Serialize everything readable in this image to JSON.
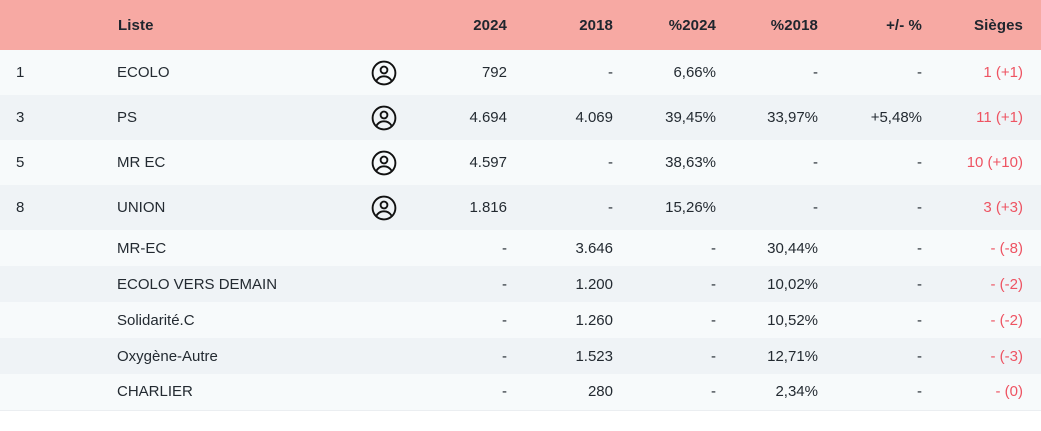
{
  "colors": {
    "header_bg": "#f7a9a3",
    "row_light": "#f7fafb",
    "row_dark": "#eff3f6",
    "text": "#232a31",
    "seats_red": "#ee5362"
  },
  "table": {
    "headers": {
      "num": "",
      "liste": "Liste",
      "icon": "",
      "y2024": "2024",
      "y2018": "2018",
      "p2024": "%2024",
      "p2018": "%2018",
      "diff": "+/- %",
      "sieges": "Sièges"
    },
    "icon_name": "candidates-user-icon",
    "rows": [
      {
        "num": "1",
        "liste": "ECOLO",
        "icon": true,
        "y2024": "792",
        "y2018": "-",
        "p2024": "6,66%",
        "p2018": "-",
        "diff": "-",
        "sieges": "1 (+1)"
      },
      {
        "num": "3",
        "liste": "PS",
        "icon": true,
        "y2024": "4.694",
        "y2018": "4.069",
        "p2024": "39,45%",
        "p2018": "33,97%",
        "diff": "+5,48%",
        "sieges": "11 (+1)"
      },
      {
        "num": "5",
        "liste": "MR EC",
        "icon": true,
        "y2024": "4.597",
        "y2018": "-",
        "p2024": "38,63%",
        "p2018": "-",
        "diff": "-",
        "sieges": "10 (+10)"
      },
      {
        "num": "8",
        "liste": "UNION",
        "icon": true,
        "y2024": "1.816",
        "y2018": "-",
        "p2024": "15,26%",
        "p2018": "-",
        "diff": "-",
        "sieges": "3 (+3)"
      },
      {
        "num": "",
        "liste": "MR-EC",
        "icon": false,
        "y2024": "-",
        "y2018": "3.646",
        "p2024": "-",
        "p2018": "30,44%",
        "diff": "-",
        "sieges": "- (-8)"
      },
      {
        "num": "",
        "liste": "ECOLO VERS DEMAIN",
        "icon": false,
        "y2024": "-",
        "y2018": "1.200",
        "p2024": "-",
        "p2018": "10,02%",
        "diff": "-",
        "sieges": "- (-2)"
      },
      {
        "num": "",
        "liste": "Solidarité.C",
        "icon": false,
        "y2024": "-",
        "y2018": "1.260",
        "p2024": "-",
        "p2018": "10,52%",
        "diff": "-",
        "sieges": "- (-2)"
      },
      {
        "num": "",
        "liste": "Oxygène-Autre",
        "icon": false,
        "y2024": "-",
        "y2018": "1.523",
        "p2024": "-",
        "p2018": "12,71%",
        "diff": "-",
        "sieges": "- (-3)"
      },
      {
        "num": "",
        "liste": "CHARLIER",
        "icon": false,
        "y2024": "-",
        "y2018": "280",
        "p2024": "-",
        "p2018": "2,34%",
        "diff": "-",
        "sieges": "- (0)"
      }
    ]
  }
}
